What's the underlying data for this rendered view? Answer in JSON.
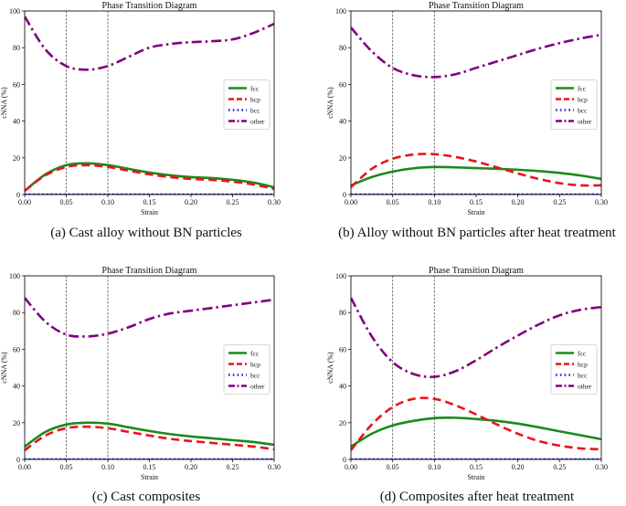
{
  "chart_data": [
    {
      "type": "line",
      "title": "Phase Transition Diagram",
      "caption": "(a) Cast alloy without BN particles",
      "xlabel": "Strain",
      "ylabel": "cNNA (%)",
      "xlim": [
        0,
        0.3
      ],
      "ylim": [
        0,
        100
      ],
      "xticks": [
        "0.00",
        "0.05",
        "0.10",
        "0.15",
        "0.20",
        "0.25",
        "0.30"
      ],
      "yticks": [
        "0",
        "20",
        "40",
        "60",
        "80",
        "100"
      ],
      "vlines": [
        0.05,
        0.1
      ],
      "legend_position": "center-right",
      "x": [
        0,
        0.025,
        0.05,
        0.075,
        0.1,
        0.125,
        0.15,
        0.175,
        0.2,
        0.225,
        0.25,
        0.275,
        0.3
      ],
      "series": [
        {
          "name": "fcc",
          "color": "#1a8a1a",
          "style": "solid",
          "values": [
            2,
            11,
            16,
            17,
            16,
            14,
            12,
            10.5,
            9.5,
            9,
            8,
            6.5,
            4
          ]
        },
        {
          "name": "hcp",
          "color": "#e8141c",
          "style": "dashed",
          "values": [
            2,
            10.5,
            15,
            16,
            15,
            13,
            11,
            9.5,
            8.5,
            8,
            7,
            5.5,
            3
          ]
        },
        {
          "name": "bcc",
          "color": "#1f1fd6",
          "style": "dotted",
          "values": [
            0,
            0,
            0,
            0,
            0,
            0,
            0,
            0,
            0,
            0,
            0,
            0,
            0
          ]
        },
        {
          "name": "other",
          "color": "#800080",
          "style": "dashdot",
          "values": [
            97,
            79,
            70,
            68,
            70,
            75,
            80,
            82,
            83,
            83.5,
            84.5,
            88,
            93
          ]
        }
      ]
    },
    {
      "type": "line",
      "title": "Phase Transition Diagram",
      "caption": "(b) Alloy without BN particles after heat treatment",
      "xlabel": "Strain",
      "ylabel": "cNNA (%)",
      "xlim": [
        0,
        0.3
      ],
      "ylim": [
        0,
        100
      ],
      "xticks": [
        "0.00",
        "0.05",
        "0.10",
        "0.15",
        "0.20",
        "0.25",
        "0.30"
      ],
      "yticks": [
        "0",
        "20",
        "40",
        "60",
        "80",
        "100"
      ],
      "vlines": [
        0.05,
        0.1
      ],
      "legend_position": "center-right",
      "x": [
        0,
        0.025,
        0.05,
        0.075,
        0.1,
        0.125,
        0.15,
        0.175,
        0.2,
        0.225,
        0.25,
        0.275,
        0.3
      ],
      "series": [
        {
          "name": "fcc",
          "color": "#1a8a1a",
          "style": "solid",
          "values": [
            5,
            9.5,
            12.5,
            14.3,
            15,
            14.8,
            14.4,
            14,
            13.5,
            12.8,
            11.8,
            10.4,
            8.5
          ]
        },
        {
          "name": "hcp",
          "color": "#e8141c",
          "style": "dashed",
          "values": [
            4,
            14,
            19.5,
            21.8,
            22,
            20.5,
            18,
            14.8,
            11.5,
            8.5,
            6.2,
            5,
            5
          ]
        },
        {
          "name": "bcc",
          "color": "#1f1fd6",
          "style": "dotted",
          "values": [
            0,
            0,
            0,
            0,
            0,
            0,
            0,
            0,
            0,
            0,
            0,
            0,
            0
          ]
        },
        {
          "name": "other",
          "color": "#800080",
          "style": "dashdot",
          "values": [
            91,
            78,
            69,
            65,
            64,
            65.5,
            69,
            72.5,
            76,
            79.5,
            82.5,
            85,
            87
          ]
        }
      ]
    },
    {
      "type": "line",
      "title": "Phase Transition Diagram",
      "caption": "(c) Cast composites",
      "xlabel": "Strain",
      "ylabel": "cNNA (%)",
      "xlim": [
        0,
        0.3
      ],
      "ylim": [
        0,
        100
      ],
      "xticks": [
        "0.00",
        "0.05",
        "0.10",
        "0.15",
        "0.20",
        "0.25",
        "0.30"
      ],
      "yticks": [
        "0",
        "20",
        "40",
        "60",
        "80",
        "100"
      ],
      "vlines": [
        0.05,
        0.1
      ],
      "legend_position": "center-right",
      "x": [
        0,
        0.025,
        0.05,
        0.075,
        0.1,
        0.125,
        0.15,
        0.175,
        0.2,
        0.225,
        0.25,
        0.275,
        0.3
      ],
      "series": [
        {
          "name": "fcc",
          "color": "#1a8a1a",
          "style": "solid",
          "values": [
            7,
            15,
            19,
            20,
            19.5,
            17.5,
            15.5,
            13.8,
            12.5,
            11.5,
            10.5,
            9.5,
            8
          ]
        },
        {
          "name": "hcp",
          "color": "#e8141c",
          "style": "dashed",
          "values": [
            5,
            13,
            17,
            17.8,
            17,
            15,
            13,
            11.2,
            10,
            9,
            8,
            7,
            5.5
          ]
        },
        {
          "name": "bcc",
          "color": "#1f1fd6",
          "style": "dotted",
          "values": [
            0,
            0,
            0,
            0,
            0,
            0,
            0,
            0,
            0,
            0,
            0,
            0,
            0
          ]
        },
        {
          "name": "other",
          "color": "#800080",
          "style": "dashdot",
          "values": [
            88,
            75,
            68,
            67,
            68.5,
            72,
            76.5,
            79.5,
            81,
            82.5,
            84,
            85.5,
            87
          ]
        }
      ]
    },
    {
      "type": "line",
      "title": "Phase Transition Diagram",
      "caption": "(d) Composites after heat treatment",
      "xlabel": "Strain",
      "ylabel": "cNNA (%)",
      "xlim": [
        0,
        0.3
      ],
      "ylim": [
        0,
        100
      ],
      "xticks": [
        "0.00",
        "0.05",
        "0.10",
        "0.15",
        "0.20",
        "0.25",
        "0.30"
      ],
      "yticks": [
        "0",
        "20",
        "40",
        "60",
        "80",
        "100"
      ],
      "vlines": [
        0.05,
        0.1
      ],
      "legend_position": "center-right",
      "x": [
        0,
        0.025,
        0.05,
        0.075,
        0.1,
        0.125,
        0.15,
        0.175,
        0.2,
        0.225,
        0.25,
        0.275,
        0.3
      ],
      "series": [
        {
          "name": "fcc",
          "color": "#1a8a1a",
          "style": "solid",
          "values": [
            7,
            14,
            18.5,
            21,
            22.5,
            22.7,
            22,
            21,
            19.5,
            17.5,
            15.3,
            13.2,
            11
          ]
        },
        {
          "name": "hcp",
          "color": "#e8141c",
          "style": "dashed",
          "values": [
            5,
            19,
            28.5,
            33,
            33,
            29.5,
            24.5,
            19,
            14,
            10,
            7.5,
            6,
            5.5
          ]
        },
        {
          "name": "bcc",
          "color": "#1f1fd6",
          "style": "dotted",
          "values": [
            0,
            0,
            0,
            0,
            0,
            0,
            0,
            0,
            0,
            0,
            0,
            0,
            0
          ]
        },
        {
          "name": "other",
          "color": "#800080",
          "style": "dashdot",
          "values": [
            88,
            67,
            53,
            46.5,
            45,
            48,
            54,
            61,
            67.5,
            73.5,
            78.5,
            81.5,
            83
          ]
        }
      ]
    }
  ]
}
